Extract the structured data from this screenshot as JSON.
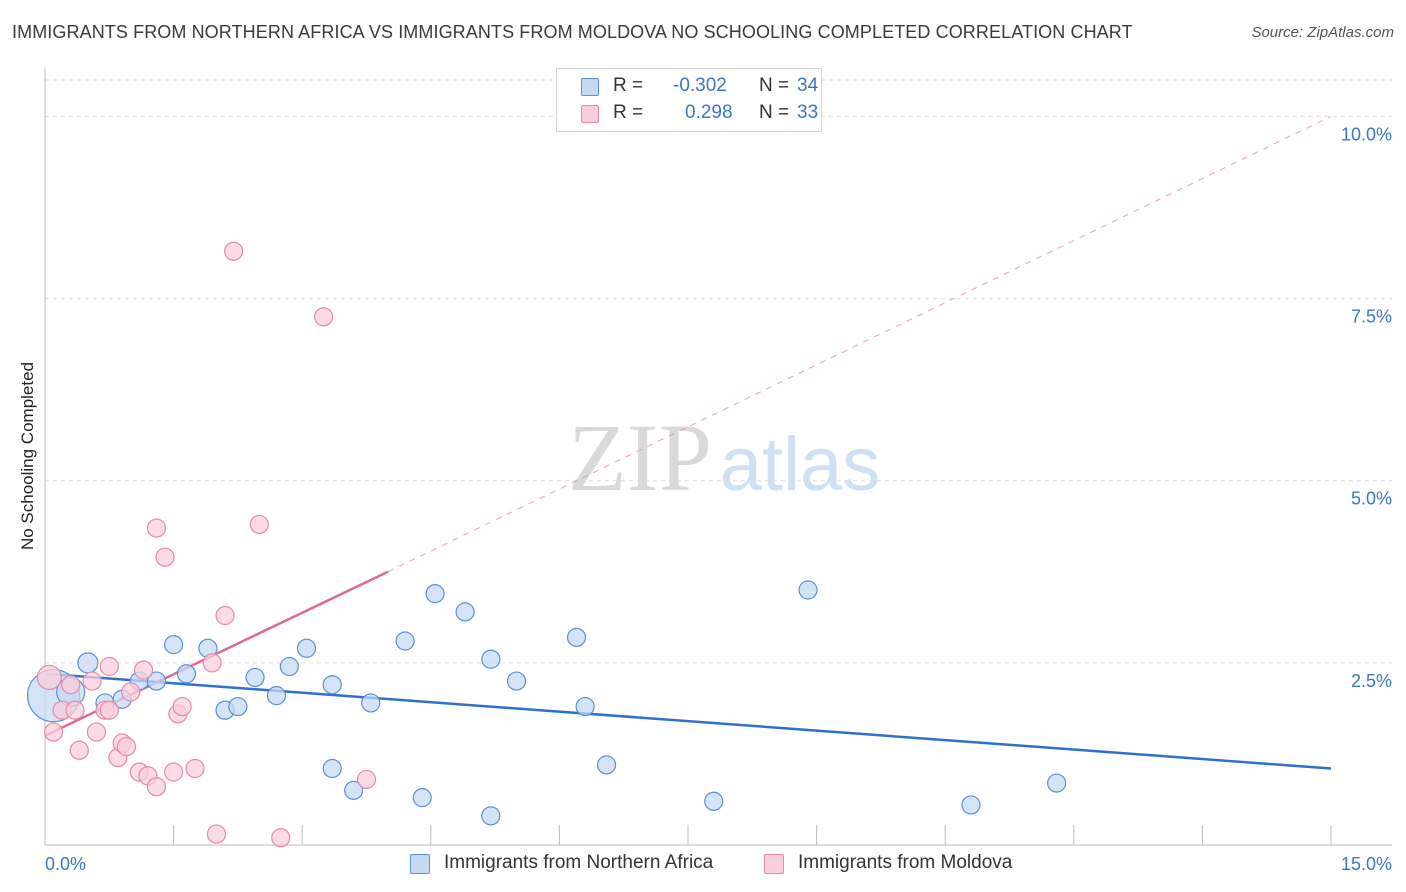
{
  "chart_data": {
    "type": "scatter",
    "title": "IMMIGRANTS FROM NORTHERN AFRICA VS IMMIGRANTS FROM MOLDOVA NO SCHOOLING COMPLETED CORRELATION CHART",
    "source": "Source: ZipAtlas.com",
    "watermark": {
      "zip": "ZIP",
      "atlas": "atlas"
    },
    "ylabel": "No Schooling Completed",
    "xlabel": "",
    "xlim": [
      0,
      15
    ],
    "ylim": [
      0,
      10.5
    ],
    "x_tick_labels": {
      "min": "0.0%",
      "max": "15.0%"
    },
    "y_ticks": [
      {
        "value": 2.5,
        "label": "2.5%"
      },
      {
        "value": 5.0,
        "label": "5.0%"
      },
      {
        "value": 7.5,
        "label": "7.5%"
      },
      {
        "value": 10.0,
        "label": "10.0%"
      }
    ],
    "legend": {
      "r_label": "R =",
      "n_label": "N =",
      "rows": [
        {
          "r": "-0.302",
          "n": "34"
        },
        {
          "r": "0.298",
          "n": "33"
        }
      ]
    },
    "series": [
      {
        "name": "Immigrants from Northern Africa",
        "color": "#5b8fd6",
        "fill": "#c5d9f3",
        "trend": {
          "x0": 0.0,
          "y0": 2.35,
          "x1": 15.0,
          "y1": 1.05
        },
        "points": [
          [
            0.1,
            2.05,
            26
          ],
          [
            0.3,
            2.1,
            14
          ],
          [
            0.5,
            2.5,
            10
          ],
          [
            0.7,
            1.95,
            9
          ],
          [
            0.9,
            2.0,
            9
          ],
          [
            1.1,
            2.25,
            9
          ],
          [
            1.3,
            2.25,
            9
          ],
          [
            1.5,
            2.75,
            9
          ],
          [
            1.65,
            2.35,
            9
          ],
          [
            1.9,
            2.7,
            9
          ],
          [
            2.1,
            1.85,
            9
          ],
          [
            2.25,
            1.9,
            9
          ],
          [
            2.45,
            2.3,
            9
          ],
          [
            2.7,
            2.05,
            9
          ],
          [
            2.85,
            2.45,
            9
          ],
          [
            3.05,
            2.7,
            9
          ],
          [
            3.35,
            1.05,
            9
          ],
          [
            3.35,
            2.2,
            9
          ],
          [
            3.6,
            0.75,
            9
          ],
          [
            3.8,
            1.95,
            9
          ],
          [
            4.2,
            2.8,
            9
          ],
          [
            4.4,
            0.65,
            9
          ],
          [
            4.55,
            3.45,
            9
          ],
          [
            4.9,
            3.2,
            9
          ],
          [
            5.2,
            0.4,
            9
          ],
          [
            5.2,
            2.55,
            9
          ],
          [
            5.5,
            2.25,
            9
          ],
          [
            6.2,
            2.85,
            9
          ],
          [
            6.3,
            1.9,
            9
          ],
          [
            6.55,
            1.1,
            9
          ],
          [
            7.8,
            0.6,
            9
          ],
          [
            8.9,
            3.5,
            9
          ],
          [
            10.8,
            0.55,
            9
          ],
          [
            11.8,
            0.85,
            9
          ]
        ]
      },
      {
        "name": "Immigrants from Moldova",
        "color": "#e889a8",
        "fill": "#f9cfdc",
        "trend": {
          "x0": 0.0,
          "y0": 1.5,
          "x1": 4.0,
          "y1": 3.75
        },
        "trend_ext": {
          "x0": 4.0,
          "y0": 3.75,
          "x1": 15.0,
          "y1": 10.0
        },
        "points": [
          [
            0.05,
            2.3,
            12
          ],
          [
            0.1,
            1.55,
            9
          ],
          [
            0.2,
            1.85,
            9
          ],
          [
            0.3,
            2.2,
            9
          ],
          [
            0.35,
            1.85,
            9
          ],
          [
            0.4,
            1.3,
            9
          ],
          [
            0.55,
            2.25,
            9
          ],
          [
            0.6,
            1.55,
            9
          ],
          [
            0.7,
            1.85,
            9
          ],
          [
            0.75,
            1.85,
            9
          ],
          [
            0.75,
            2.45,
            9
          ],
          [
            0.85,
            1.2,
            9
          ],
          [
            0.9,
            1.4,
            9
          ],
          [
            0.95,
            1.35,
            9
          ],
          [
            1.0,
            2.1,
            9
          ],
          [
            1.1,
            1.0,
            9
          ],
          [
            1.15,
            2.4,
            9
          ],
          [
            1.2,
            0.95,
            9
          ],
          [
            1.3,
            4.35,
            9
          ],
          [
            1.3,
            0.8,
            9
          ],
          [
            1.4,
            3.95,
            9
          ],
          [
            1.5,
            1.0,
            9
          ],
          [
            1.55,
            1.8,
            9
          ],
          [
            1.6,
            1.9,
            9
          ],
          [
            1.75,
            1.05,
            9
          ],
          [
            1.95,
            2.5,
            9
          ],
          [
            2.0,
            0.15,
            9
          ],
          [
            2.1,
            3.15,
            9
          ],
          [
            2.2,
            8.15,
            9
          ],
          [
            2.5,
            4.4,
            9
          ],
          [
            2.75,
            0.1,
            9
          ],
          [
            3.25,
            7.25,
            9
          ],
          [
            3.75,
            0.9,
            9
          ]
        ]
      }
    ]
  }
}
